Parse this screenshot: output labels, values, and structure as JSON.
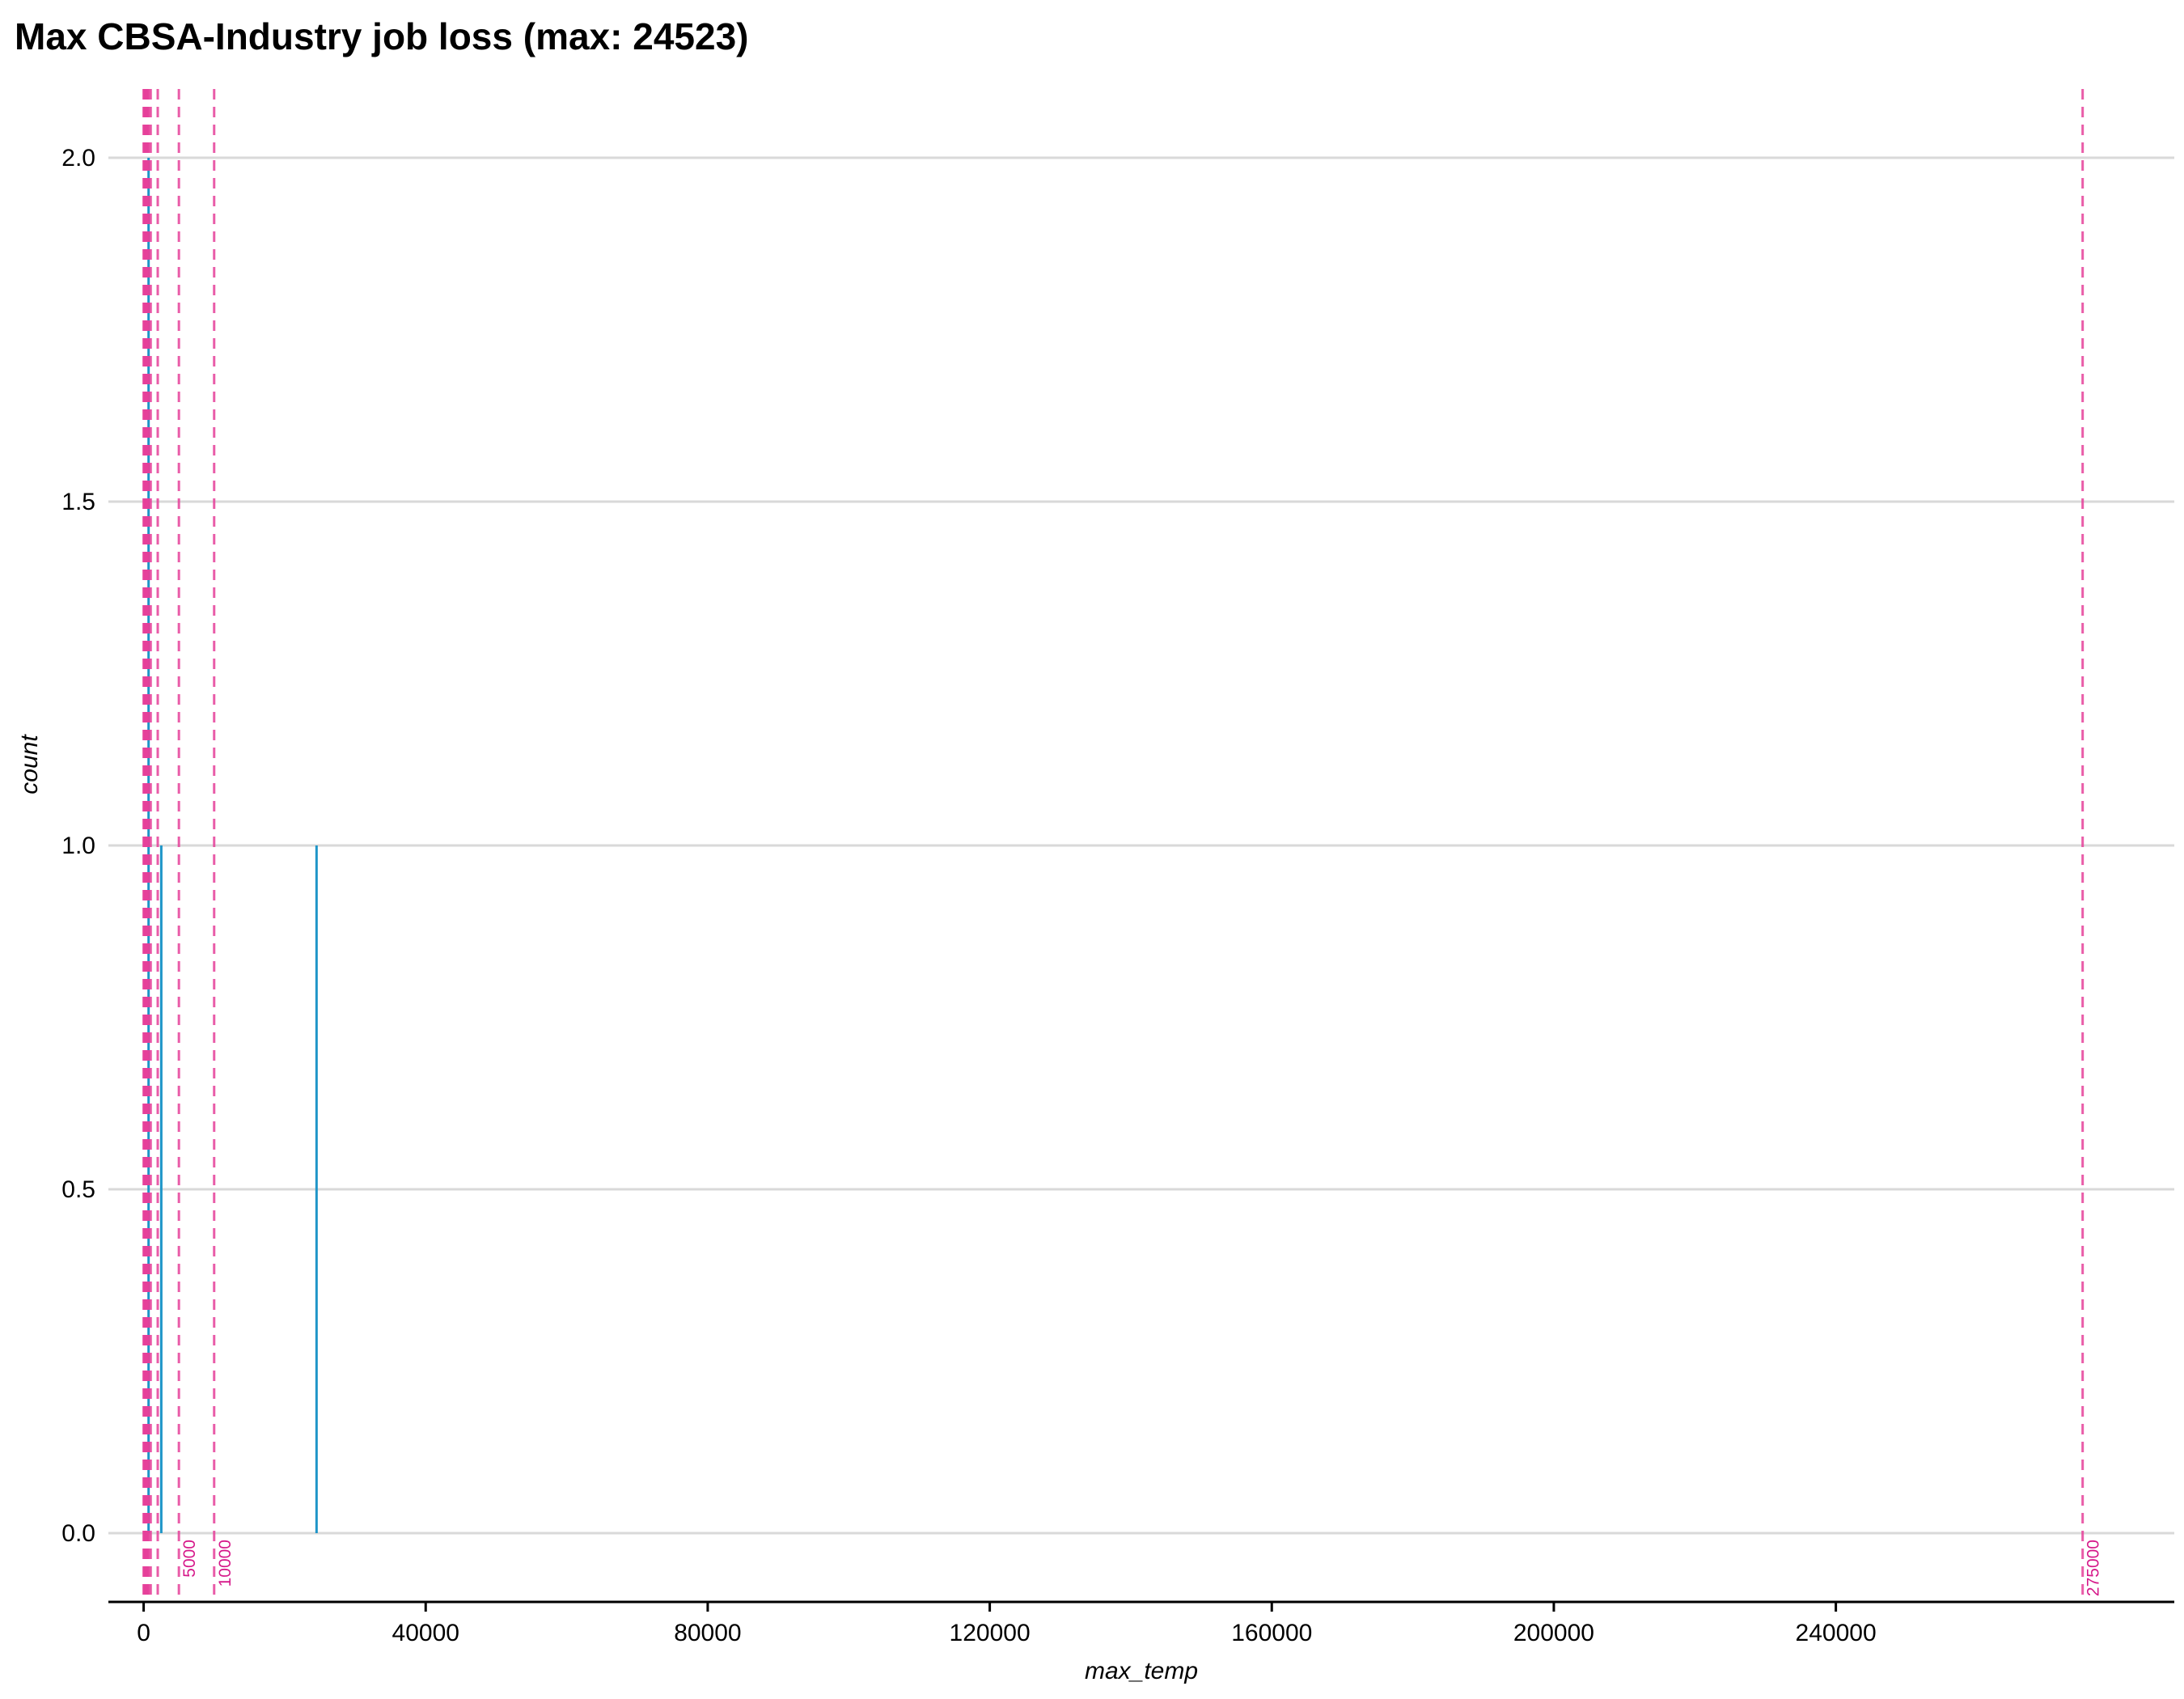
{
  "chart_data": {
    "type": "bar",
    "title": "Max CBSA-Industry job loss (max: 24523)",
    "xlabel": "max_temp",
    "ylabel": "count",
    "xlim": [
      -5000,
      288000
    ],
    "ylim": [
      -0.1,
      2.1
    ],
    "x_ticks": [
      0,
      40000,
      80000,
      120000,
      160000,
      200000,
      240000
    ],
    "y_ticks": [
      0.0,
      0.5,
      1.0,
      1.5,
      2.0
    ],
    "y_tick_labels": [
      "0.0",
      "0.5",
      "1.0",
      "1.5",
      "2.0"
    ],
    "grid": "horizontal",
    "bin_width": 100,
    "bars": [
      {
        "x": 700,
        "count": 2
      },
      {
        "x": 2500,
        "count": 1
      },
      {
        "x": 24523,
        "count": 1
      }
    ],
    "reference_lines": [
      {
        "x": 0
      },
      {
        "x": 100
      },
      {
        "x": 200
      },
      {
        "x": 300
      },
      {
        "x": 400
      },
      {
        "x": 500
      },
      {
        "x": 600
      },
      {
        "x": 750
      },
      {
        "x": 1000
      },
      {
        "x": 2000
      },
      {
        "x": 5000,
        "label": "5000"
      },
      {
        "x": 10000,
        "label": "10000"
      },
      {
        "x": 275000,
        "label": "275000"
      }
    ],
    "colors": {
      "bar": "#1f95c8",
      "reference_line": "#e6409a",
      "reference_label": "#d6198a",
      "grid": "#d9d9d9",
      "axis": "#000000"
    }
  }
}
